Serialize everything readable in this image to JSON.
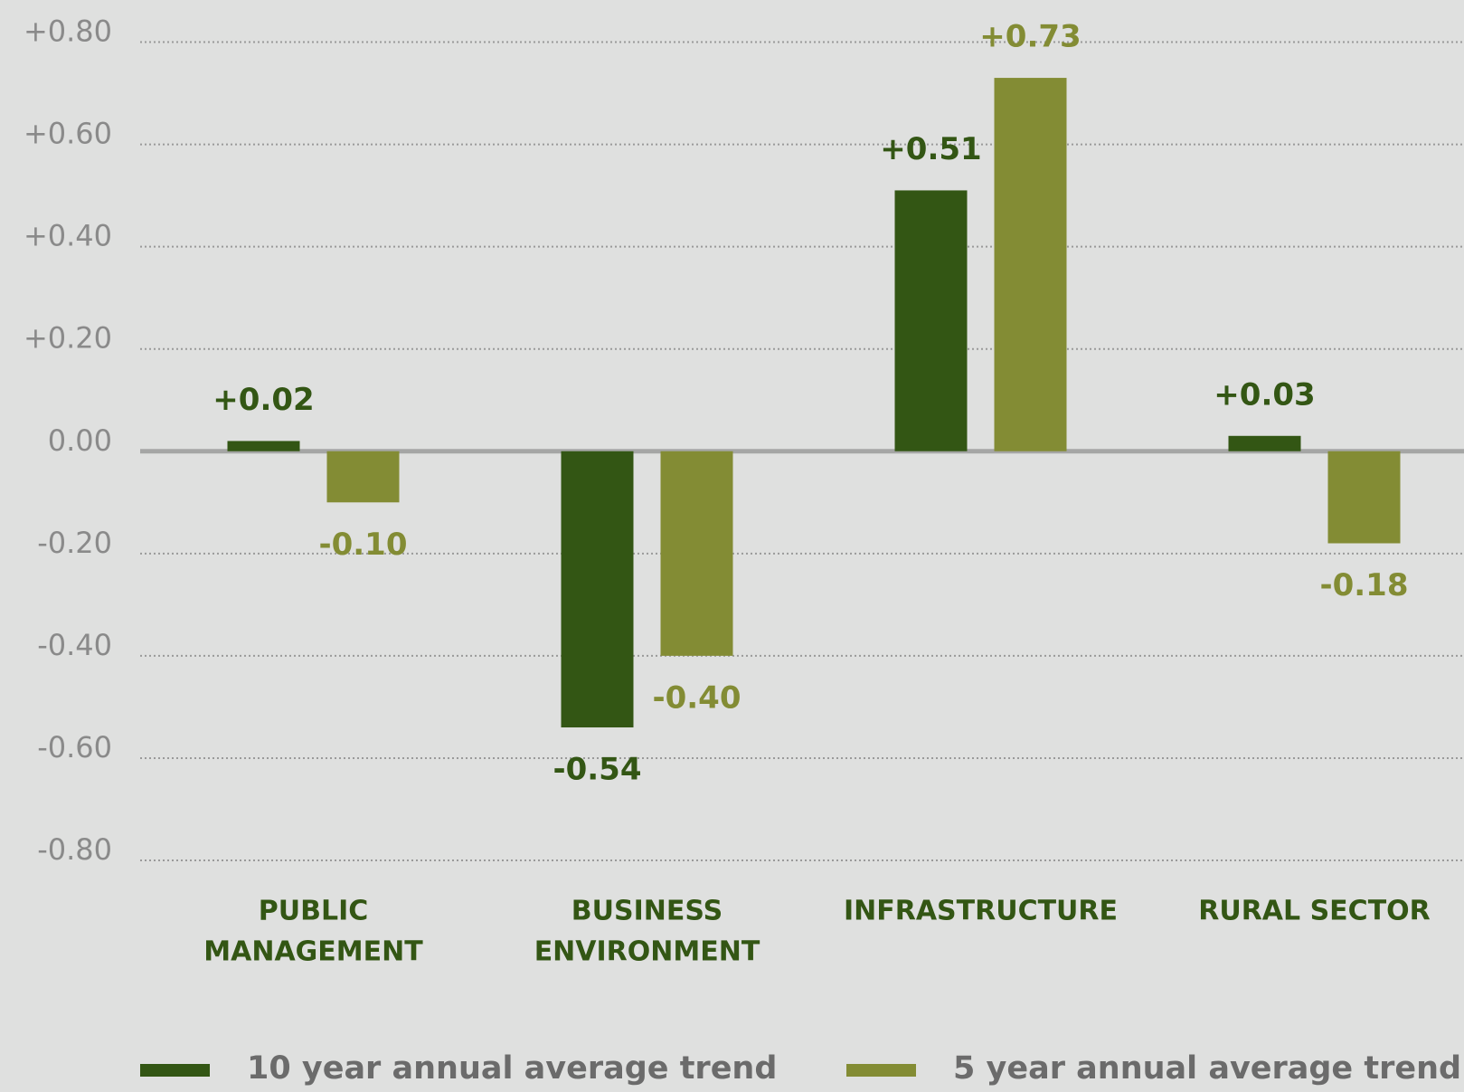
{
  "chart_data": {
    "type": "bar",
    "categories": [
      [
        "PUBLIC",
        "MANAGEMENT"
      ],
      [
        "BUSINESS",
        "ENVIRONMENT"
      ],
      [
        "INFRASTRUCTURE"
      ],
      [
        "RURAL SECTOR"
      ]
    ],
    "series": [
      {
        "name": "10 year annual average trend",
        "color": "#335614",
        "values": [
          0.02,
          -0.54,
          0.51,
          0.03
        ],
        "value_labels": [
          "+0.02",
          "-0.54",
          "+0.51",
          "+0.03"
        ]
      },
      {
        "name": "5 year annual average trend",
        "color": "#838c34",
        "values": [
          -0.1,
          -0.4,
          0.73,
          -0.18
        ],
        "value_labels": [
          "-0.10",
          "-0.40",
          "+0.73",
          "-0.18"
        ]
      }
    ],
    "ylim": [
      -0.8,
      0.8
    ],
    "yticks": [
      {
        "value": 0.8,
        "label": "+0.80"
      },
      {
        "value": 0.6,
        "label": "+0.60"
      },
      {
        "value": 0.4,
        "label": "+0.40"
      },
      {
        "value": 0.2,
        "label": "+0.20"
      },
      {
        "value": 0,
        "label": "0.00"
      },
      {
        "value": -0.2,
        "label": "-0.20"
      },
      {
        "value": -0.4,
        "label": "-0.40"
      },
      {
        "value": -0.6,
        "label": "-0.60"
      },
      {
        "value": -0.8,
        "label": "-0.80"
      }
    ],
    "grid": true,
    "legend": "bottom"
  }
}
